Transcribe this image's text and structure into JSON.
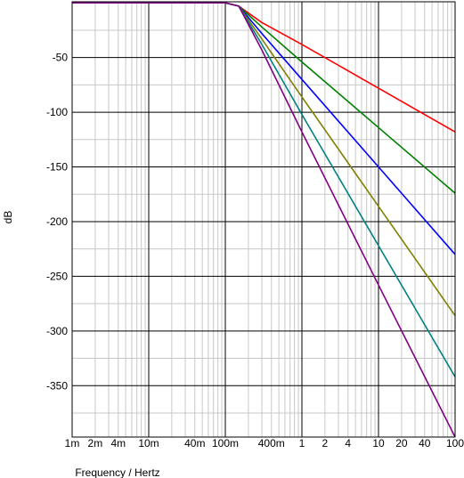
{
  "chart_data": {
    "type": "line",
    "title": "",
    "xlabel": "Frequency / Hertz",
    "ylabel": "dB",
    "x_scale": "log",
    "xlim": [
      0.001,
      100
    ],
    "ylim": [
      -397,
      1
    ],
    "grid": true,
    "x_tick_labels": [
      {
        "value": 0.001,
        "label": "1m"
      },
      {
        "value": 0.002,
        "label": "2m"
      },
      {
        "value": 0.004,
        "label": "4m"
      },
      {
        "value": 0.01,
        "label": "10m"
      },
      {
        "value": 0.04,
        "label": "40m"
      },
      {
        "value": 0.1,
        "label": "100m"
      },
      {
        "value": 0.4,
        "label": "400m"
      },
      {
        "value": 1,
        "label": "1"
      },
      {
        "value": 2,
        "label": "2"
      },
      {
        "value": 4,
        "label": "4"
      },
      {
        "value": 10,
        "label": "10"
      },
      {
        "value": 20,
        "label": "20"
      },
      {
        "value": 40,
        "label": "40"
      },
      {
        "value": 100,
        "label": "100"
      }
    ],
    "y_tick_labels": [
      {
        "value": -50,
        "label": "-50"
      },
      {
        "value": -100,
        "label": "-100"
      },
      {
        "value": -150,
        "label": "-150"
      },
      {
        "value": -200,
        "label": "-200"
      },
      {
        "value": -250,
        "label": "-250"
      },
      {
        "value": -300,
        "label": "-300"
      },
      {
        "value": -350,
        "label": "-350"
      }
    ],
    "series": [
      {
        "color": "#ff0000",
        "points": [
          [
            0.001,
            0
          ],
          [
            0.1,
            0
          ],
          [
            0.15,
            -3
          ],
          [
            0.3,
            -18
          ],
          [
            1,
            -38
          ],
          [
            10,
            -78
          ],
          [
            100,
            -118
          ]
        ]
      },
      {
        "color": "#008000",
        "points": [
          [
            0.001,
            0
          ],
          [
            0.1,
            0
          ],
          [
            0.15,
            -3
          ],
          [
            0.3,
            -22
          ],
          [
            1,
            -54
          ],
          [
            10,
            -114
          ],
          [
            100,
            -174
          ]
        ]
      },
      {
        "color": "#0000ff",
        "points": [
          [
            0.001,
            0
          ],
          [
            0.1,
            0
          ],
          [
            0.15,
            -3
          ],
          [
            0.3,
            -28
          ],
          [
            1,
            -70
          ],
          [
            10,
            -150
          ],
          [
            100,
            -230
          ]
        ]
      },
      {
        "color": "#808000",
        "points": [
          [
            0.001,
            0
          ],
          [
            0.1,
            0
          ],
          [
            0.15,
            -3
          ],
          [
            0.3,
            -33
          ],
          [
            1,
            -86
          ],
          [
            10,
            -186
          ],
          [
            100,
            -286
          ]
        ]
      },
      {
        "color": "#008080",
        "points": [
          [
            0.001,
            0
          ],
          [
            0.1,
            0
          ],
          [
            0.15,
            -3
          ],
          [
            0.3,
            -38
          ],
          [
            1,
            -102
          ],
          [
            10,
            -222
          ],
          [
            100,
            -342
          ]
        ]
      },
      {
        "color": "#800080",
        "points": [
          [
            0.001,
            0
          ],
          [
            0.1,
            0
          ],
          [
            0.15,
            -3
          ],
          [
            0.3,
            -43
          ],
          [
            1,
            -118
          ],
          [
            10,
            -258
          ],
          [
            100,
            -397
          ]
        ]
      }
    ]
  }
}
